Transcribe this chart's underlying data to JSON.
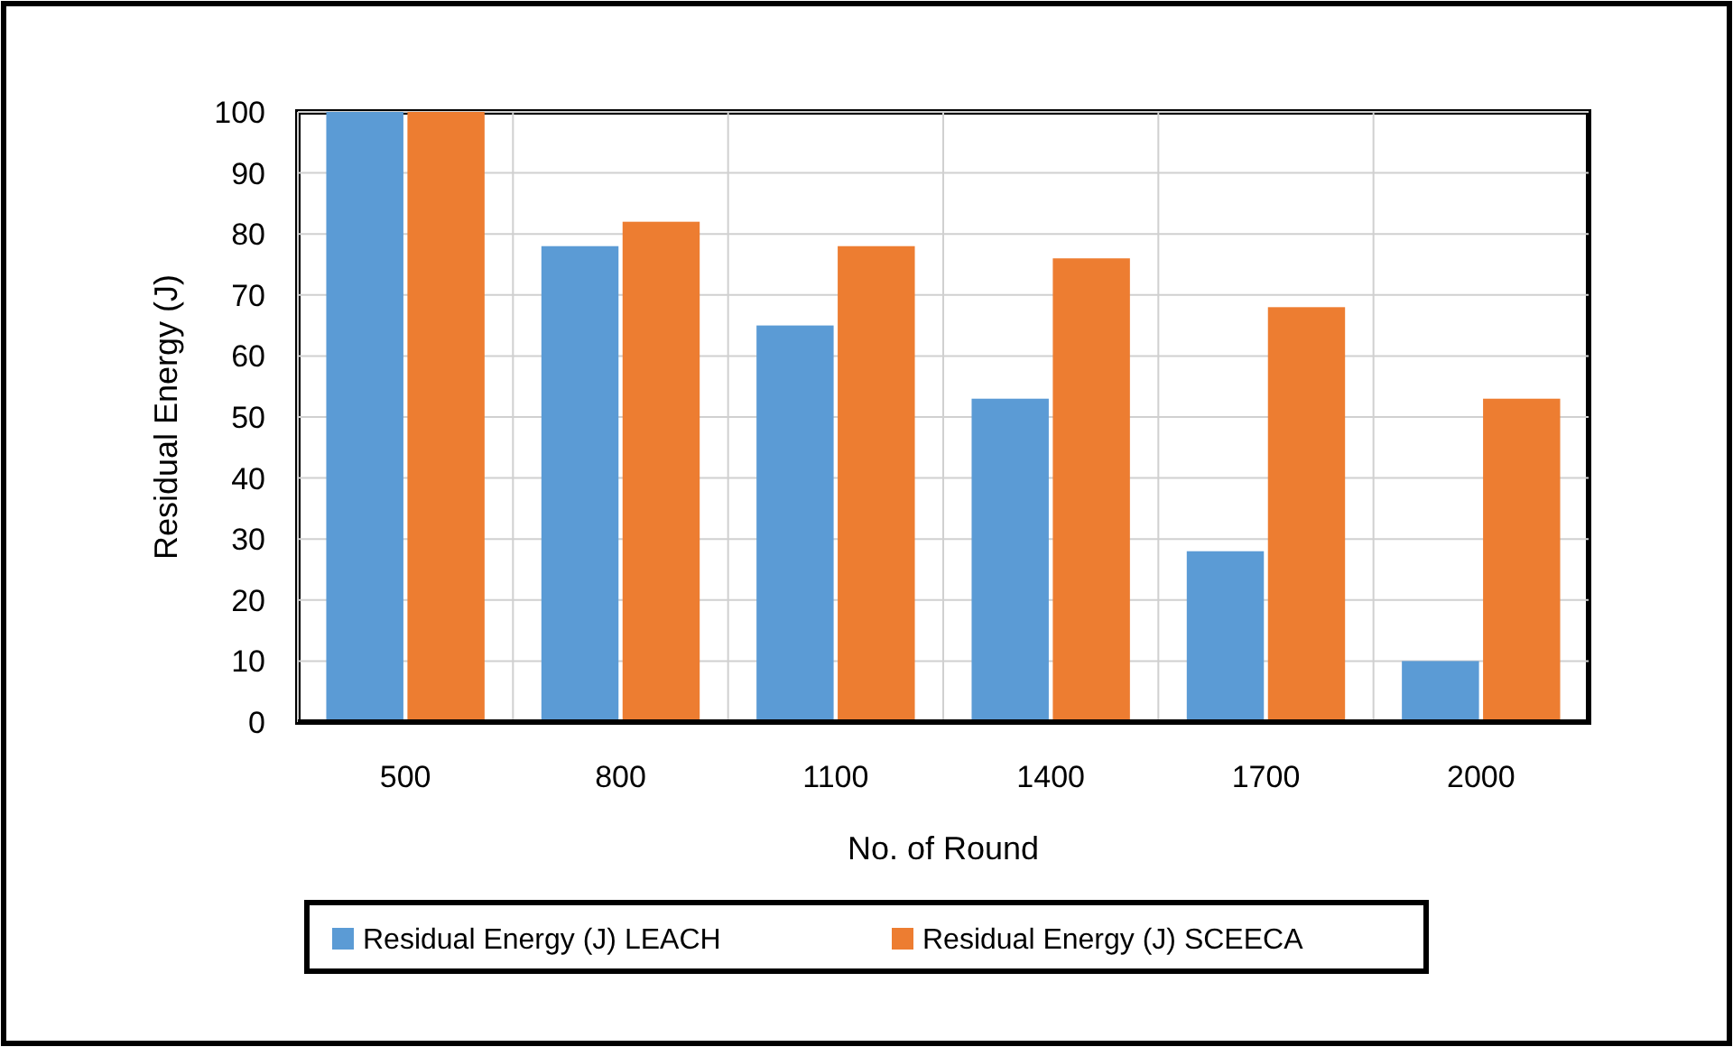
{
  "chart_data": {
    "type": "bar",
    "xlabel": "No. of Round",
    "ylabel": "Residual Energy (J)",
    "categories": [
      "500",
      "800",
      "1100",
      "1400",
      "1700",
      "2000"
    ],
    "series": [
      {
        "name": "Residual Energy (J) LEACH",
        "color": "#5b9bd5",
        "values": [
          100,
          78,
          65,
          53,
          28,
          10
        ]
      },
      {
        "name": "Residual Energy (J) SCEECA",
        "color": "#ed7d31",
        "values": [
          100,
          82,
          78,
          76,
          68,
          53
        ]
      }
    ],
    "ylim": [
      0,
      100
    ],
    "yticks": [
      0,
      10,
      20,
      30,
      40,
      50,
      60,
      70,
      80,
      90,
      100
    ],
    "grid": true,
    "legend": "bottom"
  }
}
